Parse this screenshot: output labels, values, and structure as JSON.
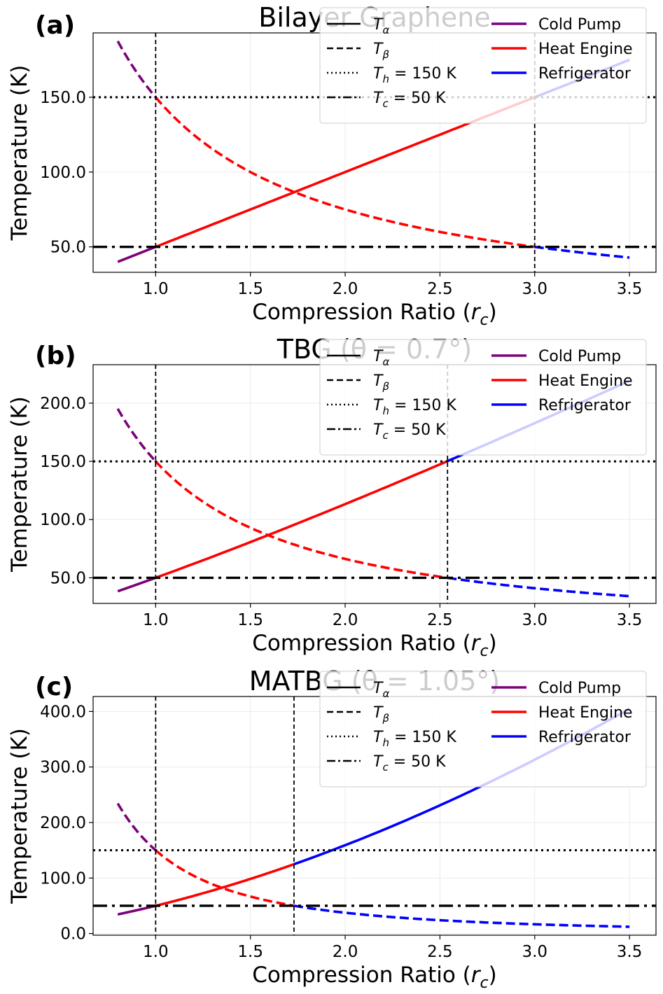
{
  "chart_data": [
    {
      "type": "line",
      "panel_label": "(a)",
      "title": "Bilayer Graphene",
      "xlabel": "Compression Ratio (r_c)",
      "ylabel": "Temperature (K)",
      "xlim": [
        0.67,
        3.64
      ],
      "ylim": [
        33,
        193
      ],
      "xticks": [
        1.0,
        1.5,
        2.0,
        2.5,
        3.0,
        3.5
      ],
      "xtick_labels": [
        "1.0",
        "1.5",
        "2.0",
        "2.5",
        "3.0",
        "3.5"
      ],
      "yticks": [
        50,
        100,
        150
      ],
      "ytick_labels": [
        "50.0",
        "100.0",
        "150.0"
      ],
      "grid": true,
      "T_alpha_exponent": 1.0,
      "T_beta_exponent": 1.0,
      "r_min": 0.8,
      "r_max": 3.5,
      "reference_lines": {
        "Th": 150,
        "Tc": 50
      },
      "vlines": [
        1.0,
        3.0
      ],
      "regimes": [
        {
          "label": "Cold Pump",
          "from": 0.8,
          "to": 1.0
        },
        {
          "label": "Heat Engine",
          "from": 1.0,
          "to": 3.0
        },
        {
          "label": "Refrigerator",
          "from": 3.0,
          "to": 3.5
        }
      ]
    },
    {
      "type": "line",
      "panel_label": "(b)",
      "title": "TBG (θ = 0.7°)",
      "xlabel": "Compression Ratio (r_c)",
      "ylabel": "Temperature (K)",
      "xlim": [
        0.67,
        3.64
      ],
      "ylim": [
        28,
        233
      ],
      "xticks": [
        1.0,
        1.5,
        2.0,
        2.5,
        3.0,
        3.5
      ],
      "xtick_labels": [
        "1.0",
        "1.5",
        "2.0",
        "2.5",
        "3.0",
        "3.5"
      ],
      "yticks": [
        50,
        100,
        150,
        200
      ],
      "ytick_labels": [
        "50.0",
        "100.0",
        "150.0",
        "200.0"
      ],
      "grid": true,
      "T_alpha_exponent": 1.18,
      "T_beta_exponent": 1.18,
      "r_min": 0.8,
      "r_max": 3.5,
      "reference_lines": {
        "Th": 150,
        "Tc": 50
      },
      "vlines": [
        1.0,
        2.54
      ],
      "regimes": [
        {
          "label": "Cold Pump",
          "from": 0.8,
          "to": 1.0
        },
        {
          "label": "Heat Engine",
          "from": 1.0,
          "to": 2.54
        },
        {
          "label": "Refrigerator",
          "from": 2.54,
          "to": 3.5
        }
      ]
    },
    {
      "type": "line",
      "panel_label": "(c)",
      "title": "MATBG (θ = 1.05°)",
      "xlabel": "Compression Ratio (r_c)",
      "ylabel": "Temperature (K)",
      "xlim": [
        0.67,
        3.64
      ],
      "ylim": [
        -3,
        427
      ],
      "xticks": [
        1.0,
        1.5,
        2.0,
        2.5,
        3.0,
        3.5
      ],
      "xtick_labels": [
        "1.0",
        "1.5",
        "2.0",
        "2.5",
        "3.0",
        "3.5"
      ],
      "yticks": [
        0,
        100,
        200,
        300,
        400
      ],
      "ytick_labels": [
        "0.0",
        "100.0",
        "200.0",
        "300.0",
        "400.0"
      ],
      "grid": true,
      "T_alpha_exponent": 1.67,
      "T_beta_exponent": 2.0,
      "r_min": 0.8,
      "r_max": 3.5,
      "reference_lines": {
        "Th": 150,
        "Tc": 50
      },
      "vlines": [
        1.0,
        1.73
      ],
      "regimes": [
        {
          "label": "Cold Pump",
          "from": 0.8,
          "to": 1.0
        },
        {
          "label": "Heat Engine",
          "from": 1.0,
          "to": 1.73
        },
        {
          "label": "Refrigerator",
          "from": 1.73,
          "to": 3.5
        }
      ]
    }
  ],
  "legend": {
    "location": "upper right",
    "line_style_entries": [
      {
        "style": "solid",
        "label": "T_α",
        "main": "T",
        "sub": "α",
        "rest": ""
      },
      {
        "style": "dashed",
        "label": "T_β",
        "main": "T",
        "sub": "β",
        "rest": ""
      },
      {
        "style": "dotted",
        "label": "T_h = 150 K",
        "main": "T",
        "sub": "h",
        "rest": " = 150 K"
      },
      {
        "style": "dashdot",
        "label": "T_c = 50 K",
        "main": "T",
        "sub": "c",
        "rest": " = 50 K"
      }
    ],
    "regime_entries": [
      {
        "label": "Cold Pump",
        "color": "#7b017b"
      },
      {
        "label": "Heat Engine",
        "color": "#ff0000"
      },
      {
        "label": "Refrigerator",
        "color": "#0000ff"
      }
    ]
  },
  "colors": {
    "cold_pump": "#7b017b",
    "heat_engine": "#ff0000",
    "refrigerator": "#0000ff",
    "reference": "#000000",
    "grid": "#ebebeb",
    "legend_bg": "#ffffff"
  }
}
